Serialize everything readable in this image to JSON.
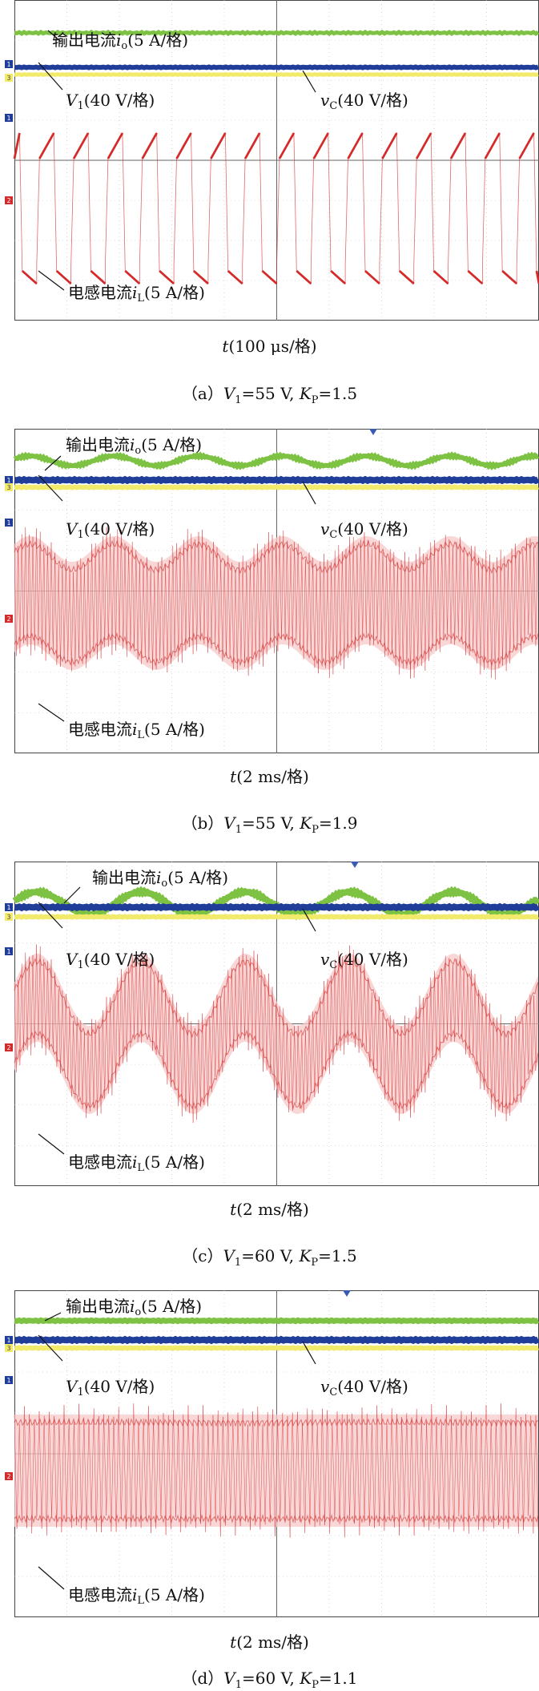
{
  "labels": {
    "io_prefix": "输出电流",
    "io_var": "i",
    "io_sub": "o",
    "io_scale": "(5 A/格)",
    "v1_var": "V",
    "v1_sub": "1",
    "v1_scale": "(40 V/格)",
    "vc_var": "v",
    "vc_sub": "C",
    "vc_scale": "(40 V/格)",
    "il_prefix": "电感电流",
    "il_var": "i",
    "il_sub": "L",
    "il_scale": "(5 A/格)"
  },
  "colors": {
    "io": "#7dc242",
    "v1": "#1f3d99",
    "vc": "#f2ea6a",
    "il": "#d42a2a",
    "grid": "#bbbbbb",
    "frame": "#444444"
  },
  "panels": [
    {
      "id": "a",
      "time_var": "t",
      "time_scale": "(100 μs/格)",
      "caption_prefix": "（a）",
      "caption_v": "V",
      "caption_v_sub": "1",
      "caption_v_val": "=55 V, ",
      "caption_k": "K",
      "caption_k_sub": "P",
      "caption_k_val": "=1.5",
      "mode": "zoom"
    },
    {
      "id": "b",
      "time_var": "t",
      "time_scale": "(2 ms/格)",
      "caption_prefix": "（b）",
      "caption_v": "V",
      "caption_v_sub": "1",
      "caption_v_val": "=55 V, ",
      "caption_k": "K",
      "caption_k_sub": "P",
      "caption_k_val": "=1.9",
      "mode": "osc-mid"
    },
    {
      "id": "c",
      "time_var": "t",
      "time_scale": "(2 ms/格)",
      "caption_prefix": "（c）",
      "caption_v": "V",
      "caption_v_sub": "1",
      "caption_v_val": "=60 V, ",
      "caption_k": "K",
      "caption_k_sub": "P",
      "caption_k_val": "=1.5",
      "mode": "osc-large"
    },
    {
      "id": "d",
      "time_var": "t",
      "time_scale": "(2 ms/格)",
      "caption_prefix": "（d）",
      "caption_v": "V",
      "caption_v_sub": "1",
      "caption_v_val": "=60 V, ",
      "caption_k": "K",
      "caption_k_sub": "P",
      "caption_k_val": "=1.1",
      "mode": "steady"
    }
  ]
}
